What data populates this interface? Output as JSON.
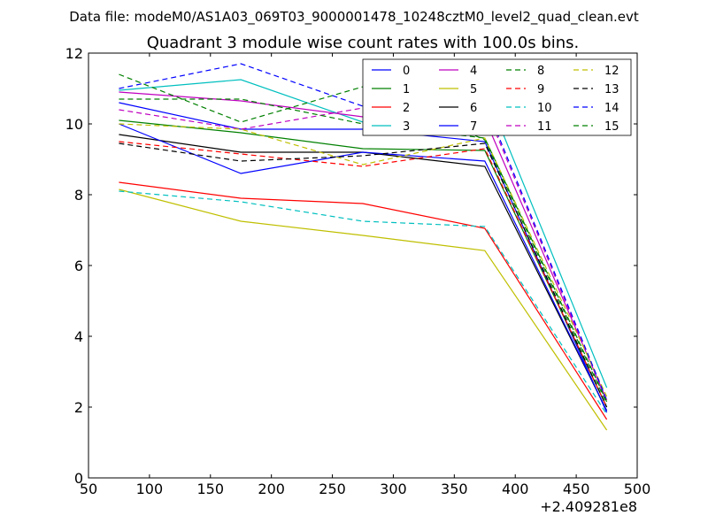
{
  "suptitle": "Data file: modeM0/AS1A03_069T03_9000001478_10248cztM0_level2_quad_clean.evt",
  "chart_data": {
    "type": "line",
    "title": "Quadrant 3 module wise count rates with 100.0s bins.",
    "x_offset_label": "+2.409281e8",
    "xlim": [
      50,
      500
    ],
    "ylim": [
      0,
      12
    ],
    "xticks": [
      "50",
      "100",
      "150",
      "200",
      "250",
      "300",
      "350",
      "400",
      "450",
      "500"
    ],
    "yticks": [
      "0",
      "2",
      "4",
      "6",
      "8",
      "10",
      "12"
    ],
    "x": [
      75,
      175,
      275,
      375,
      475
    ],
    "grid": false,
    "legend_position": "top-right",
    "legend_columns": 4,
    "series": [
      {
        "name": "0",
        "color": "#0000ff",
        "dash": "solid",
        "values": [
          10.6,
          9.85,
          9.85,
          9.5,
          1.85
        ]
      },
      {
        "name": "1",
        "color": "#008000",
        "dash": "solid",
        "values": [
          10.1,
          9.75,
          9.3,
          9.25,
          2.0
        ]
      },
      {
        "name": "2",
        "color": "#ff0000",
        "dash": "solid",
        "values": [
          8.35,
          7.9,
          7.75,
          7.05,
          1.65
        ]
      },
      {
        "name": "3",
        "color": "#00bfbf",
        "dash": "solid",
        "values": [
          10.95,
          11.25,
          10.05,
          10.98,
          2.55
        ]
      },
      {
        "name": "4",
        "color": "#bf00bf",
        "dash": "solid",
        "values": [
          10.9,
          10.65,
          10.2,
          10.15,
          2.2
        ]
      },
      {
        "name": "5",
        "color": "#bfbf00",
        "dash": "solid",
        "values": [
          8.15,
          7.25,
          6.85,
          6.42,
          1.35
        ]
      },
      {
        "name": "6",
        "color": "#000000",
        "dash": "solid",
        "values": [
          9.7,
          9.2,
          9.2,
          8.8,
          1.9
        ]
      },
      {
        "name": "7",
        "color": "#0000ff",
        "dash": "solid",
        "values": [
          10.0,
          8.6,
          9.2,
          8.95,
          1.9
        ]
      },
      {
        "name": "8",
        "color": "#008000",
        "dash": "dashed",
        "values": [
          11.4,
          10.05,
          11.05,
          9.55,
          2.1
        ]
      },
      {
        "name": "9",
        "color": "#ff0000",
        "dash": "dashed",
        "values": [
          9.5,
          9.15,
          8.8,
          9.3,
          2.0
        ]
      },
      {
        "name": "10",
        "color": "#00bfbf",
        "dash": "dashed",
        "values": [
          8.1,
          7.8,
          7.25,
          7.1,
          1.8
        ]
      },
      {
        "name": "11",
        "color": "#bf00bf",
        "dash": "dashed",
        "values": [
          10.4,
          9.85,
          10.45,
          10.5,
          2.15
        ]
      },
      {
        "name": "12",
        "color": "#bfbf00",
        "dash": "dashed",
        "values": [
          10.0,
          9.85,
          8.85,
          9.6,
          2.3
        ]
      },
      {
        "name": "13",
        "color": "#000000",
        "dash": "dashed",
        "values": [
          9.45,
          8.95,
          9.1,
          9.45,
          2.0
        ]
      },
      {
        "name": "14",
        "color": "#0000ff",
        "dash": "dashed",
        "values": [
          11.0,
          11.7,
          10.5,
          10.6,
          2.2
        ]
      },
      {
        "name": "15",
        "color": "#008000",
        "dash": "dashed",
        "values": [
          10.7,
          10.7,
          10.0,
          9.6,
          2.15
        ]
      }
    ]
  }
}
